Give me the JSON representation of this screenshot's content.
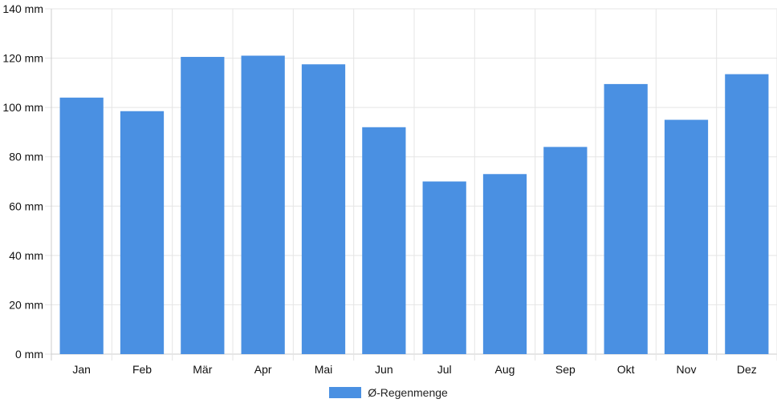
{
  "chart_data": {
    "type": "bar",
    "categories": [
      "Jan",
      "Feb",
      "Mär",
      "Apr",
      "Mai",
      "Jun",
      "Jul",
      "Aug",
      "Sep",
      "Okt",
      "Nov",
      "Dez"
    ],
    "series": [
      {
        "name": "Ø-Regenmenge",
        "values": [
          104,
          98.5,
          120.5,
          121,
          117.5,
          92,
          70,
          73,
          84,
          109.5,
          95,
          113.5
        ]
      }
    ],
    "ylim": [
      0,
      140
    ],
    "yticks": [
      0,
      20,
      40,
      60,
      80,
      100,
      120,
      140
    ],
    "y_tick_labels": [
      "0 mm",
      "20 mm",
      "40 mm",
      "60 mm",
      "80 mm",
      "100 mm",
      "120 mm",
      "140 mm"
    ],
    "grid": true,
    "legend_position": "bottom",
    "colors": {
      "bar": "#4a90e2",
      "grid": "#e5e5e5",
      "axis": "#cccccc"
    }
  }
}
